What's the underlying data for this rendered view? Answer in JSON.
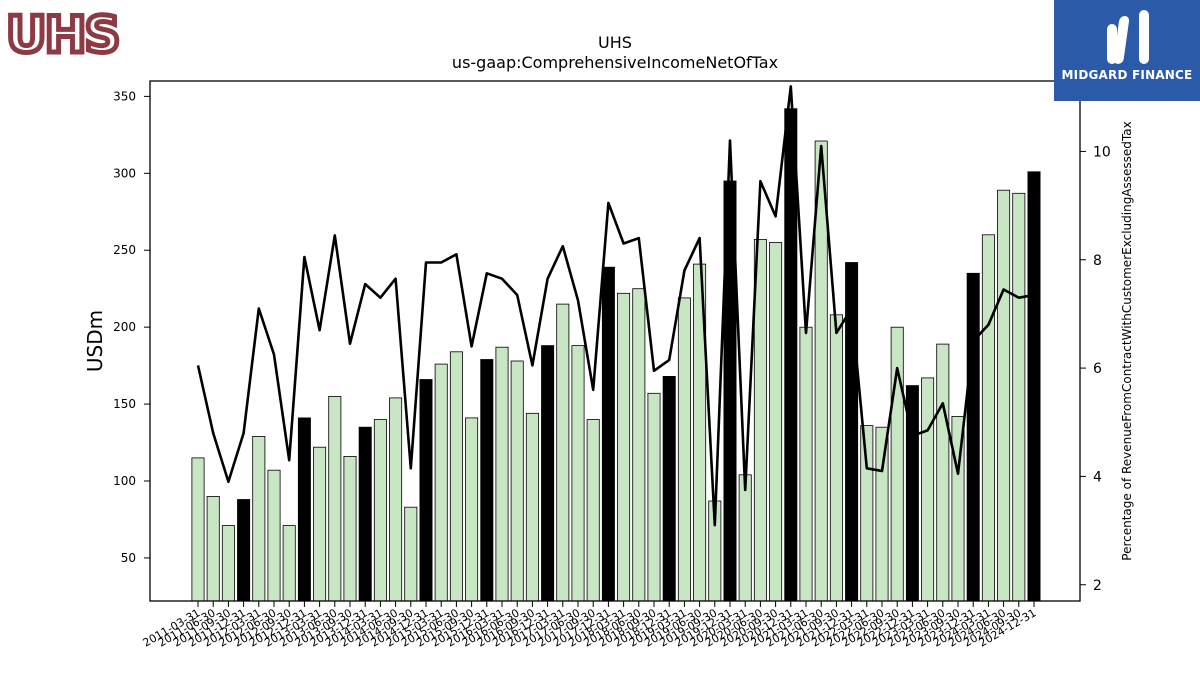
{
  "header": {
    "logo_text": "UHS",
    "brand_text": "MIDGARD FINANCE"
  },
  "colors": {
    "logo": "#8c3a44",
    "brand_bg": "#2b5aa8",
    "bar_light": "#c8e6c3",
    "bar_dark": "#000000",
    "line": "#000000"
  },
  "chart_data": {
    "type": "bar",
    "title": "UHS",
    "subtitle": "us-gaap:ComprehensiveIncomeNetOfTax",
    "ylabel": "USDm",
    "y2label": "Percentage of RevenueFromContractWithCustomerExcludingAssessedTax",
    "ylim": [
      22,
      360
    ],
    "y2lim": [
      1.7,
      11.3
    ],
    "yticks": [
      50,
      100,
      150,
      200,
      250,
      300,
      350
    ],
    "y2ticks": [
      2,
      4,
      6,
      8,
      10
    ],
    "grid": false,
    "categories": [
      "2011-03-31",
      "2011-06-30",
      "2011-09-30",
      "2011-12-31",
      "2012-03-31",
      "2012-06-30",
      "2012-09-30",
      "2012-12-31",
      "2013-03-31",
      "2013-06-30",
      "2013-09-30",
      "2013-12-31",
      "2014-03-31",
      "2014-06-30",
      "2014-09-30",
      "2014-12-31",
      "2015-03-31",
      "2015-06-30",
      "2015-09-30",
      "2015-12-31",
      "2016-03-31",
      "2016-06-30",
      "2016-09-30",
      "2016-12-31",
      "2017-03-31",
      "2017-06-30",
      "2017-09-30",
      "2017-12-31",
      "2018-03-31",
      "2018-06-30",
      "2018-09-30",
      "2018-12-31",
      "2019-03-31",
      "2019-06-30",
      "2019-09-30",
      "2019-12-31",
      "2020-03-31",
      "2020-06-30",
      "2020-09-30",
      "2020-12-31",
      "2021-03-31",
      "2021-06-30",
      "2021-09-30",
      "2021-12-31",
      "2022-03-31",
      "2022-06-30",
      "2022-09-30",
      "2022-12-31",
      "2023-03-31",
      "2023-06-30",
      "2023-09-30",
      "2023-12-31",
      "2024-03-31",
      "2024-06-30",
      "2024-09-30",
      "2024-12-31"
    ],
    "series": [
      {
        "values": [
          115,
          90,
          71,
          88,
          129,
          107,
          71,
          141,
          122,
          155,
          116,
          135,
          140,
          154,
          83,
          166,
          176,
          184,
          141,
          179,
          187,
          178,
          144,
          188,
          215,
          188,
          140,
          239,
          222,
          225,
          157,
          168,
          219,
          241,
          87,
          295,
          104,
          257,
          255,
          342,
          200,
          321,
          208,
          242,
          136,
          135,
          200,
          162,
          167,
          189,
          142,
          235,
          260,
          289,
          287,
          301
        ]
      },
      {
        "type": "line",
        "axis": "right",
        "values": [
          6.05,
          4.8,
          3.9,
          4.8,
          7.1,
          6.25,
          4.3,
          8.05,
          6.7,
          8.45,
          6.45,
          7.55,
          7.3,
          7.65,
          4.15,
          7.95,
          7.95,
          8.1,
          6.4,
          7.75,
          7.65,
          7.35,
          6.05,
          7.65,
          8.25,
          7.25,
          5.6,
          9.05,
          8.3,
          8.4,
          5.95,
          6.15,
          7.8,
          8.4,
          3.1,
          10.2,
          3.75,
          9.45,
          8.8,
          11.2,
          6.65,
          10.1,
          6.65,
          7.1,
          4.15,
          4.1,
          6.0,
          4.75,
          4.85,
          5.35,
          4.05,
          6.5,
          6.8,
          7.45,
          7.3,
          7.35
        ]
      }
    ]
  }
}
